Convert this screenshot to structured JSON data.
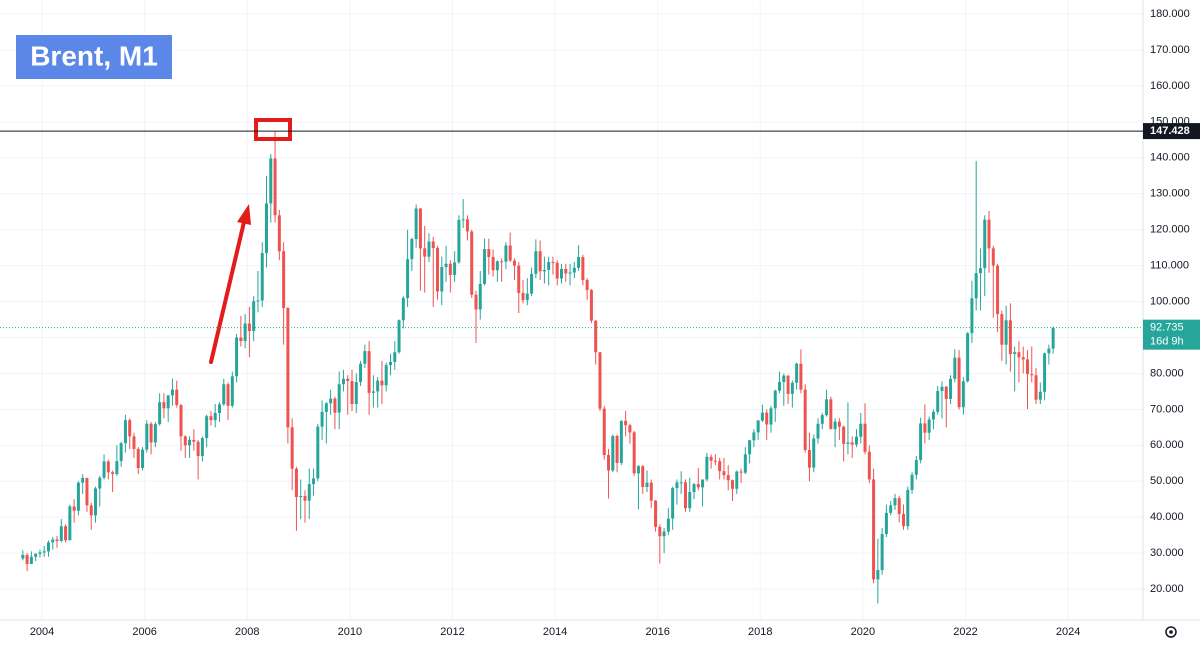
{
  "chart_data": {
    "type": "candlestick",
    "title": "Brent, M1",
    "up_color": "#26a69a",
    "down_color": "#ef5350",
    "grid": true,
    "xlim": [
      2003.18,
      2025.46
    ],
    "ylim": [
      11.4,
      183.9
    ],
    "xticks": [
      2004,
      2006,
      2008,
      2010,
      2012,
      2014,
      2016,
      2018,
      2020,
      2022,
      2024
    ],
    "yticks": [
      {
        "value": 20,
        "label": "20.000"
      },
      {
        "value": 30,
        "label": "30.000"
      },
      {
        "value": 40,
        "label": "40.000"
      },
      {
        "value": 50,
        "label": "50.000"
      },
      {
        "value": 60,
        "label": "60.000"
      },
      {
        "value": 70,
        "label": "70.000"
      },
      {
        "value": 80,
        "label": "80.000"
      },
      {
        "value": 90,
        "label": "90.000"
      },
      {
        "value": 100,
        "label": "100.000"
      },
      {
        "value": 110,
        "label": "110.000"
      },
      {
        "value": 120,
        "label": "120.000"
      },
      {
        "value": 130,
        "label": "130.000"
      },
      {
        "value": 140,
        "label": "140.000"
      },
      {
        "value": 150,
        "label": "150.000"
      },
      {
        "value": 160,
        "label": "160.000"
      },
      {
        "value": 170,
        "label": "170.000"
      },
      {
        "value": 180,
        "label": "180.000"
      }
    ],
    "level_line": 147.428,
    "countdown": "16d 9h",
    "x": [
      "2003-08",
      "2003-09",
      "2003-10",
      "2003-11",
      "2003-12",
      "2004-01",
      "2004-02",
      "2004-03",
      "2004-04",
      "2004-05",
      "2004-06",
      "2004-07",
      "2004-08",
      "2004-09",
      "2004-10",
      "2004-11",
      "2004-12",
      "2005-01",
      "2005-02",
      "2005-03",
      "2005-04",
      "2005-05",
      "2005-06",
      "2005-07",
      "2005-08",
      "2005-09",
      "2005-10",
      "2005-11",
      "2005-12",
      "2006-01",
      "2006-02",
      "2006-03",
      "2006-04",
      "2006-05",
      "2006-06",
      "2006-07",
      "2006-08",
      "2006-09",
      "2006-10",
      "2006-11",
      "2006-12",
      "2007-01",
      "2007-02",
      "2007-03",
      "2007-04",
      "2007-05",
      "2007-06",
      "2007-07",
      "2007-08",
      "2007-09",
      "2007-10",
      "2007-11",
      "2007-12",
      "2008-01",
      "2008-02",
      "2008-03",
      "2008-04",
      "2008-05",
      "2008-06",
      "2008-07",
      "2008-08",
      "2008-09",
      "2008-10",
      "2008-11",
      "2008-12",
      "2009-01",
      "2009-02",
      "2009-03",
      "2009-04",
      "2009-05",
      "2009-06",
      "2009-07",
      "2009-08",
      "2009-09",
      "2009-10",
      "2009-11",
      "2009-12",
      "2010-01",
      "2010-02",
      "2010-03",
      "2010-04",
      "2010-05",
      "2010-06",
      "2010-07",
      "2010-08",
      "2010-09",
      "2010-10",
      "2010-11",
      "2010-12",
      "2011-01",
      "2011-02",
      "2011-03",
      "2011-04",
      "2011-05",
      "2011-06",
      "2011-07",
      "2011-08",
      "2011-09",
      "2011-10",
      "2011-11",
      "2011-12",
      "2012-01",
      "2012-02",
      "2012-03",
      "2012-04",
      "2012-05",
      "2012-06",
      "2012-07",
      "2012-08",
      "2012-09",
      "2012-10",
      "2012-11",
      "2012-12",
      "2013-01",
      "2013-02",
      "2013-03",
      "2013-04",
      "2013-05",
      "2013-06",
      "2013-07",
      "2013-08",
      "2013-09",
      "2013-10",
      "2013-11",
      "2013-12",
      "2014-01",
      "2014-02",
      "2014-03",
      "2014-04",
      "2014-05",
      "2014-06",
      "2014-07",
      "2014-08",
      "2014-09",
      "2014-10",
      "2014-11",
      "2014-12",
      "2015-01",
      "2015-02",
      "2015-03",
      "2015-04",
      "2015-05",
      "2015-06",
      "2015-07",
      "2015-08",
      "2015-09",
      "2015-10",
      "2015-11",
      "2015-12",
      "2016-01",
      "2016-02",
      "2016-03",
      "2016-04",
      "2016-05",
      "2016-06",
      "2016-07",
      "2016-08",
      "2016-09",
      "2016-10",
      "2016-11",
      "2016-12",
      "2017-01",
      "2017-02",
      "2017-03",
      "2017-04",
      "2017-05",
      "2017-06",
      "2017-07",
      "2017-08",
      "2017-09",
      "2017-10",
      "2017-11",
      "2017-12",
      "2018-01",
      "2018-02",
      "2018-03",
      "2018-04",
      "2018-05",
      "2018-06",
      "2018-07",
      "2018-08",
      "2018-09",
      "2018-10",
      "2018-11",
      "2018-12",
      "2019-01",
      "2019-02",
      "2019-03",
      "2019-04",
      "2019-05",
      "2019-06",
      "2019-07",
      "2019-08",
      "2019-09",
      "2019-10",
      "2019-11",
      "2019-12",
      "2020-01",
      "2020-02",
      "2020-03",
      "2020-04",
      "2020-05",
      "2020-06",
      "2020-07",
      "2020-08",
      "2020-09",
      "2020-10",
      "2020-11",
      "2020-12",
      "2021-01",
      "2021-02",
      "2021-03",
      "2021-04",
      "2021-05",
      "2021-06",
      "2021-07",
      "2021-08",
      "2021-09",
      "2021-10",
      "2021-11",
      "2021-12",
      "2022-01",
      "2022-02",
      "2022-03",
      "2022-04",
      "2022-05",
      "2022-06",
      "2022-07",
      "2022-08",
      "2022-09",
      "2022-10",
      "2022-11",
      "2022-12",
      "2023-01",
      "2023-02",
      "2023-03",
      "2023-04",
      "2023-05",
      "2023-06",
      "2023-07",
      "2023-08",
      "2023-09"
    ],
    "open": [
      28.5,
      29.5,
      27.0,
      29.0,
      29.8,
      30.2,
      30.5,
      33.0,
      33.8,
      33.4,
      37.5,
      33.6,
      43.0,
      41.8,
      49.6,
      50.9,
      43.3,
      40.5,
      48.0,
      51.0,
      55.5,
      52.5,
      52.0,
      55.6,
      60.6,
      67.0,
      62.5,
      59.0,
      53.7,
      58.8,
      66.0,
      60.8,
      65.9,
      72.0,
      70.3,
      73.9,
      75.5,
      71.2,
      62.5,
      60.0,
      61.5,
      61.0,
      57.0,
      62.0,
      68.1,
      67.0,
      69.0,
      71.4,
      77.0,
      71.0,
      79.2,
      90.0,
      89.0,
      93.9,
      91.8,
      100.1,
      100.3,
      113.5,
      127.3,
      139.8,
      124.0,
      114.0,
      98.2,
      65.0,
      53.5,
      45.6,
      45.9,
      44.6,
      49.2,
      50.8,
      65.2,
      69.3,
      71.7,
      73.0,
      69.1,
      77.0,
      78.5,
      77.9,
      71.5,
      77.6,
      82.7,
      86.2,
      74.6,
      75.0,
      78.0,
      76.7,
      82.3,
      83.2,
      85.9,
      94.8,
      101.0,
      111.8,
      117.4,
      125.9,
      114.8,
      112.5,
      116.7,
      114.9,
      102.8,
      109.6,
      110.5,
      107.4,
      110.9,
      122.7,
      122.9,
      119.5,
      101.9,
      97.8,
      104.9,
      114.6,
      112.4,
      108.7,
      111.2,
      111.1,
      115.6,
      111.4,
      110.0,
      102.4,
      100.4,
      102.2,
      107.7,
      114.0,
      108.4,
      108.8,
      111.0,
      110.8,
      106.4,
      109.1,
      107.8,
      108.1,
      109.4,
      112.4,
      106.0,
      103.2,
      94.7,
      85.9,
      70.2,
      57.3,
      52.99,
      62.6,
      55.1,
      66.8,
      65.6,
      63.6,
      52.2,
      54.2,
      48.4,
      49.6,
      44.6,
      37.3,
      34.7,
      36.0,
      39.6,
      48.1,
      49.7,
      49.7,
      42.5,
      47.0,
      49.2,
      48.3,
      50.5,
      56.8,
      55.7,
      55.6,
      52.8,
      51.7,
      50.3,
      47.9,
      52.7,
      52.4,
      57.5,
      61.4,
      63.6,
      66.9,
      69.1,
      65.8,
      70.3,
      75.2,
      77.6,
      79.4,
      74.3,
      77.4,
      82.7,
      75.5,
      58.7,
      53.8,
      61.9,
      66.0,
      68.4,
      72.8,
      64.5,
      66.6,
      65.2,
      60.4,
      60.8,
      60.2,
      62.4,
      66.0,
      58.2,
      50.5,
      22.7,
      25.3,
      35.3,
      41.2,
      43.3,
      45.3,
      40.9,
      37.5,
      47.6,
      51.8,
      55.9,
      66.1,
      63.5,
      67.2,
      69.3,
      75.1,
      76.3,
      72.9,
      78.5,
      84.4,
      70.6,
      77.8,
      91.2,
      100.9,
      107.9,
      109.3,
      122.8,
      114.8,
      110.0,
      96.5,
      88.0,
      94.8,
      85.4,
      85.9,
      84.5,
      83.9,
      79.8,
      79.5,
      72.7,
      74.9,
      85.6,
      86.9
    ],
    "high": [
      30.8,
      30.0,
      30.5,
      30.0,
      31.0,
      32.0,
      33.5,
      34.5,
      34.8,
      39.5,
      38.0,
      43.5,
      45.0,
      50.0,
      52.0,
      51.0,
      44.0,
      48.5,
      51.5,
      57.5,
      56.0,
      53.0,
      60.0,
      61.0,
      68.5,
      67.5,
      63.5,
      59.5,
      59.5,
      67.0,
      66.5,
      66.5,
      74.5,
      74.5,
      74.0,
      78.6,
      78.0,
      71.5,
      62.8,
      62.5,
      64.5,
      61.5,
      62.5,
      68.5,
      69.5,
      71.5,
      72.0,
      78.5,
      77.5,
      80.5,
      91.0,
      96.0,
      96.5,
      98.5,
      101.5,
      108.5,
      116.5,
      135.0,
      141.0,
      147.4,
      125.5,
      116.5,
      98.5,
      67.5,
      54.0,
      50.5,
      47.5,
      53.5,
      53.5,
      66.0,
      72.5,
      72.0,
      75.5,
      73.5,
      80.5,
      81.0,
      79.5,
      81.0,
      80.0,
      83.5,
      88.0,
      89.0,
      79.5,
      79.0,
      83.5,
      83.0,
      85.5,
      89.0,
      95.0,
      101.5,
      120.0,
      117.8,
      127.0,
      126.0,
      121.0,
      119.0,
      118.0,
      115.5,
      112.5,
      115.5,
      111.5,
      114.0,
      124.0,
      128.5,
      124.0,
      120.0,
      103.0,
      108.5,
      117.5,
      117.5,
      114.5,
      111.5,
      112.0,
      116.5,
      119.2,
      112.0,
      111.0,
      106.0,
      106.5,
      109.5,
      117.3,
      117.0,
      112.5,
      112.5,
      112.5,
      111.5,
      110.5,
      110.5,
      110.5,
      111.0,
      115.7,
      113.0,
      106.5,
      103.5,
      94.8,
      86.0,
      71.0,
      59.0,
      63.0,
      63.0,
      67.0,
      69.6,
      66.0,
      64.0,
      54.5,
      54.5,
      53.0,
      50.5,
      44.8,
      38.0,
      37.0,
      42.5,
      48.5,
      50.5,
      52.8,
      50.5,
      51.0,
      49.5,
      53.7,
      50.5,
      57.9,
      57.5,
      57.5,
      56.5,
      56.5,
      54.5,
      50.5,
      53.0,
      53.5,
      59.5,
      61.5,
      64.5,
      67.0,
      71.3,
      70.0,
      71.0,
      75.5,
      80.5,
      80.0,
      79.5,
      78.0,
      83.0,
      86.7,
      77.0,
      63.5,
      63.0,
      67.5,
      69.0,
      75.5,
      73.5,
      67.5,
      67.5,
      65.5,
      71.9,
      62.5,
      64.5,
      69.0,
      71.7,
      60.0,
      53.5,
      34.0,
      37.0,
      43.5,
      44.5,
      46.5,
      46.0,
      43.5,
      48.5,
      52.5,
      57.0,
      67.7,
      71.4,
      68.0,
      70.0,
      76.5,
      77.8,
      76.5,
      79.5,
      86.7,
      86.5,
      79.0,
      91.5,
      105.8,
      139.1,
      114.8,
      124.0,
      125.2,
      115.5,
      110.5,
      97.5,
      98.8,
      99.5,
      87.5,
      89.0,
      87.5,
      86.5,
      87.5,
      81.5,
      77.5,
      85.8,
      88.0,
      93.0
    ],
    "low": [
      28.0,
      25.0,
      27.0,
      27.8,
      28.8,
      29.0,
      29.0,
      31.0,
      31.5,
      33.0,
      33.0,
      33.5,
      38.5,
      40.5,
      46.5,
      41.5,
      36.5,
      38.5,
      43.0,
      50.5,
      50.5,
      47.0,
      51.5,
      54.0,
      58.0,
      59.0,
      56.5,
      52.0,
      53.0,
      58.0,
      57.5,
      59.5,
      65.5,
      67.5,
      66.5,
      71.0,
      70.5,
      58.5,
      56.5,
      56.5,
      58.5,
      50.5,
      55.5,
      59.5,
      65.5,
      65.0,
      66.5,
      71.0,
      67.0,
      70.5,
      77.5,
      87.5,
      87.0,
      84.5,
      89.0,
      97.0,
      98.5,
      109.5,
      122.0,
      122.0,
      111.5,
      88.0,
      60.5,
      47.5,
      36.2,
      39.5,
      38.5,
      39.5,
      46.0,
      50.0,
      61.5,
      60.5,
      68.5,
      64.5,
      64.5,
      75.0,
      68.5,
      69.5,
      69.0,
      76.5,
      81.5,
      68.5,
      70.5,
      70.5,
      71.5,
      75.0,
      79.5,
      81.0,
      85.5,
      92.5,
      98.5,
      108.5,
      115.0,
      103.0,
      102.5,
      111.0,
      98.5,
      100.5,
      99.0,
      105.5,
      102.5,
      105.5,
      110.5,
      120.5,
      117.0,
      101.0,
      88.5,
      95.0,
      104.5,
      107.5,
      107.0,
      105.5,
      105.5,
      109.0,
      111.0,
      106.0,
      96.8,
      99.5,
      99.0,
      101.5,
      106.5,
      106.0,
      105.0,
      104.5,
      107.5,
      104.5,
      105.0,
      105.5,
      104.5,
      106.5,
      108.5,
      104.5,
      100.5,
      94.0,
      82.5,
      69.5,
      56.0,
      45.2,
      52.5,
      52.5,
      54.5,
      62.5,
      60.5,
      51.5,
      42.2,
      46.5,
      47.0,
      42.5,
      36.0,
      27.1,
      30.0,
      35.0,
      36.5,
      43.5,
      46.5,
      41.5,
      41.5,
      45.0,
      47.5,
      43.0,
      50.0,
      53.5,
      54.5,
      50.5,
      50.5,
      47.5,
      44.5,
      46.5,
      49.5,
      52.0,
      55.0,
      59.5,
      61.5,
      66.5,
      61.5,
      63.5,
      66.5,
      74.5,
      71.0,
      71.5,
      70.5,
      75.5,
      74.5,
      58.0,
      50.0,
      52.5,
      60.5,
      64.5,
      68.0,
      64.5,
      59.5,
      61.5,
      55.5,
      57.5,
      56.5,
      59.5,
      60.5,
      57.5,
      49.5,
      21.6,
      16.0,
      24.0,
      34.5,
      40.5,
      42.0,
      38.5,
      36.5,
      36.5,
      46.5,
      50.5,
      55.0,
      60.5,
      61.5,
      64.5,
      68.5,
      67.5,
      65.0,
      71.5,
      77.5,
      70.0,
      68.5,
      77.5,
      88.5,
      97.5,
      97.5,
      101.5,
      108.0,
      95.5,
      91.5,
      83.5,
      82.5,
      80.5,
      75.0,
      77.5,
      80.0,
      70.1,
      77.5,
      71.5,
      71.5,
      72.5,
      82.5,
      85.5
    ],
    "close": [
      29.5,
      27.0,
      29.0,
      29.8,
      30.2,
      30.5,
      33.0,
      33.8,
      33.4,
      37.5,
      33.6,
      43.0,
      41.8,
      49.6,
      50.9,
      43.3,
      40.5,
      48.0,
      51.0,
      55.5,
      52.5,
      52.0,
      55.6,
      60.6,
      67.0,
      62.5,
      59.0,
      53.7,
      58.8,
      66.0,
      60.8,
      65.9,
      72.0,
      70.3,
      73.9,
      75.5,
      71.2,
      62.5,
      60.0,
      61.5,
      61.0,
      57.0,
      62.0,
      68.1,
      67.0,
      69.0,
      71.4,
      77.0,
      71.0,
      79.2,
      90.0,
      89.0,
      93.9,
      91.8,
      100.1,
      100.3,
      113.5,
      127.3,
      139.8,
      124.0,
      114.0,
      98.2,
      65.0,
      53.5,
      45.6,
      45.9,
      44.6,
      49.2,
      50.8,
      65.2,
      69.3,
      71.7,
      73.0,
      69.1,
      77.0,
      78.5,
      77.9,
      71.5,
      77.6,
      82.7,
      86.2,
      74.6,
      75.0,
      78.0,
      76.7,
      82.3,
      83.2,
      85.9,
      94.8,
      101.0,
      111.8,
      117.4,
      125.9,
      114.8,
      112.5,
      116.7,
      114.9,
      102.8,
      109.6,
      110.5,
      107.4,
      110.9,
      122.7,
      122.9,
      119.5,
      101.9,
      97.8,
      104.9,
      114.6,
      112.4,
      108.7,
      111.2,
      111.1,
      115.6,
      111.4,
      110.0,
      102.4,
      100.4,
      102.2,
      107.7,
      114.0,
      108.4,
      108.8,
      111.0,
      110.8,
      106.4,
      109.1,
      107.8,
      108.1,
      109.4,
      112.4,
      106.0,
      103.2,
      94.7,
      85.9,
      70.2,
      57.3,
      52.99,
      62.6,
      55.1,
      66.8,
      65.6,
      63.6,
      52.2,
      54.2,
      48.4,
      49.6,
      44.6,
      37.3,
      34.7,
      36.0,
      39.6,
      48.1,
      49.7,
      49.7,
      42.5,
      47.0,
      49.2,
      48.3,
      50.5,
      56.8,
      55.7,
      55.6,
      52.8,
      51.7,
      50.3,
      47.9,
      52.7,
      52.4,
      57.5,
      61.4,
      63.6,
      66.9,
      69.1,
      65.8,
      70.3,
      75.2,
      77.6,
      79.4,
      74.3,
      77.4,
      82.7,
      75.5,
      58.7,
      53.8,
      61.9,
      66.0,
      68.4,
      72.8,
      64.5,
      66.6,
      65.2,
      60.4,
      60.8,
      60.2,
      62.4,
      66.0,
      58.2,
      50.5,
      22.7,
      25.3,
      35.3,
      41.2,
      43.3,
      45.3,
      40.9,
      37.5,
      47.6,
      51.8,
      55.9,
      66.1,
      63.5,
      67.2,
      69.3,
      75.1,
      76.3,
      72.9,
      78.5,
      84.4,
      70.6,
      77.8,
      91.2,
      100.9,
      107.9,
      109.3,
      122.8,
      114.8,
      110.0,
      96.5,
      88.0,
      94.8,
      85.4,
      85.9,
      84.5,
      83.9,
      79.8,
      79.5,
      72.7,
      74.9,
      85.6,
      86.9,
      92.735
    ]
  }
}
